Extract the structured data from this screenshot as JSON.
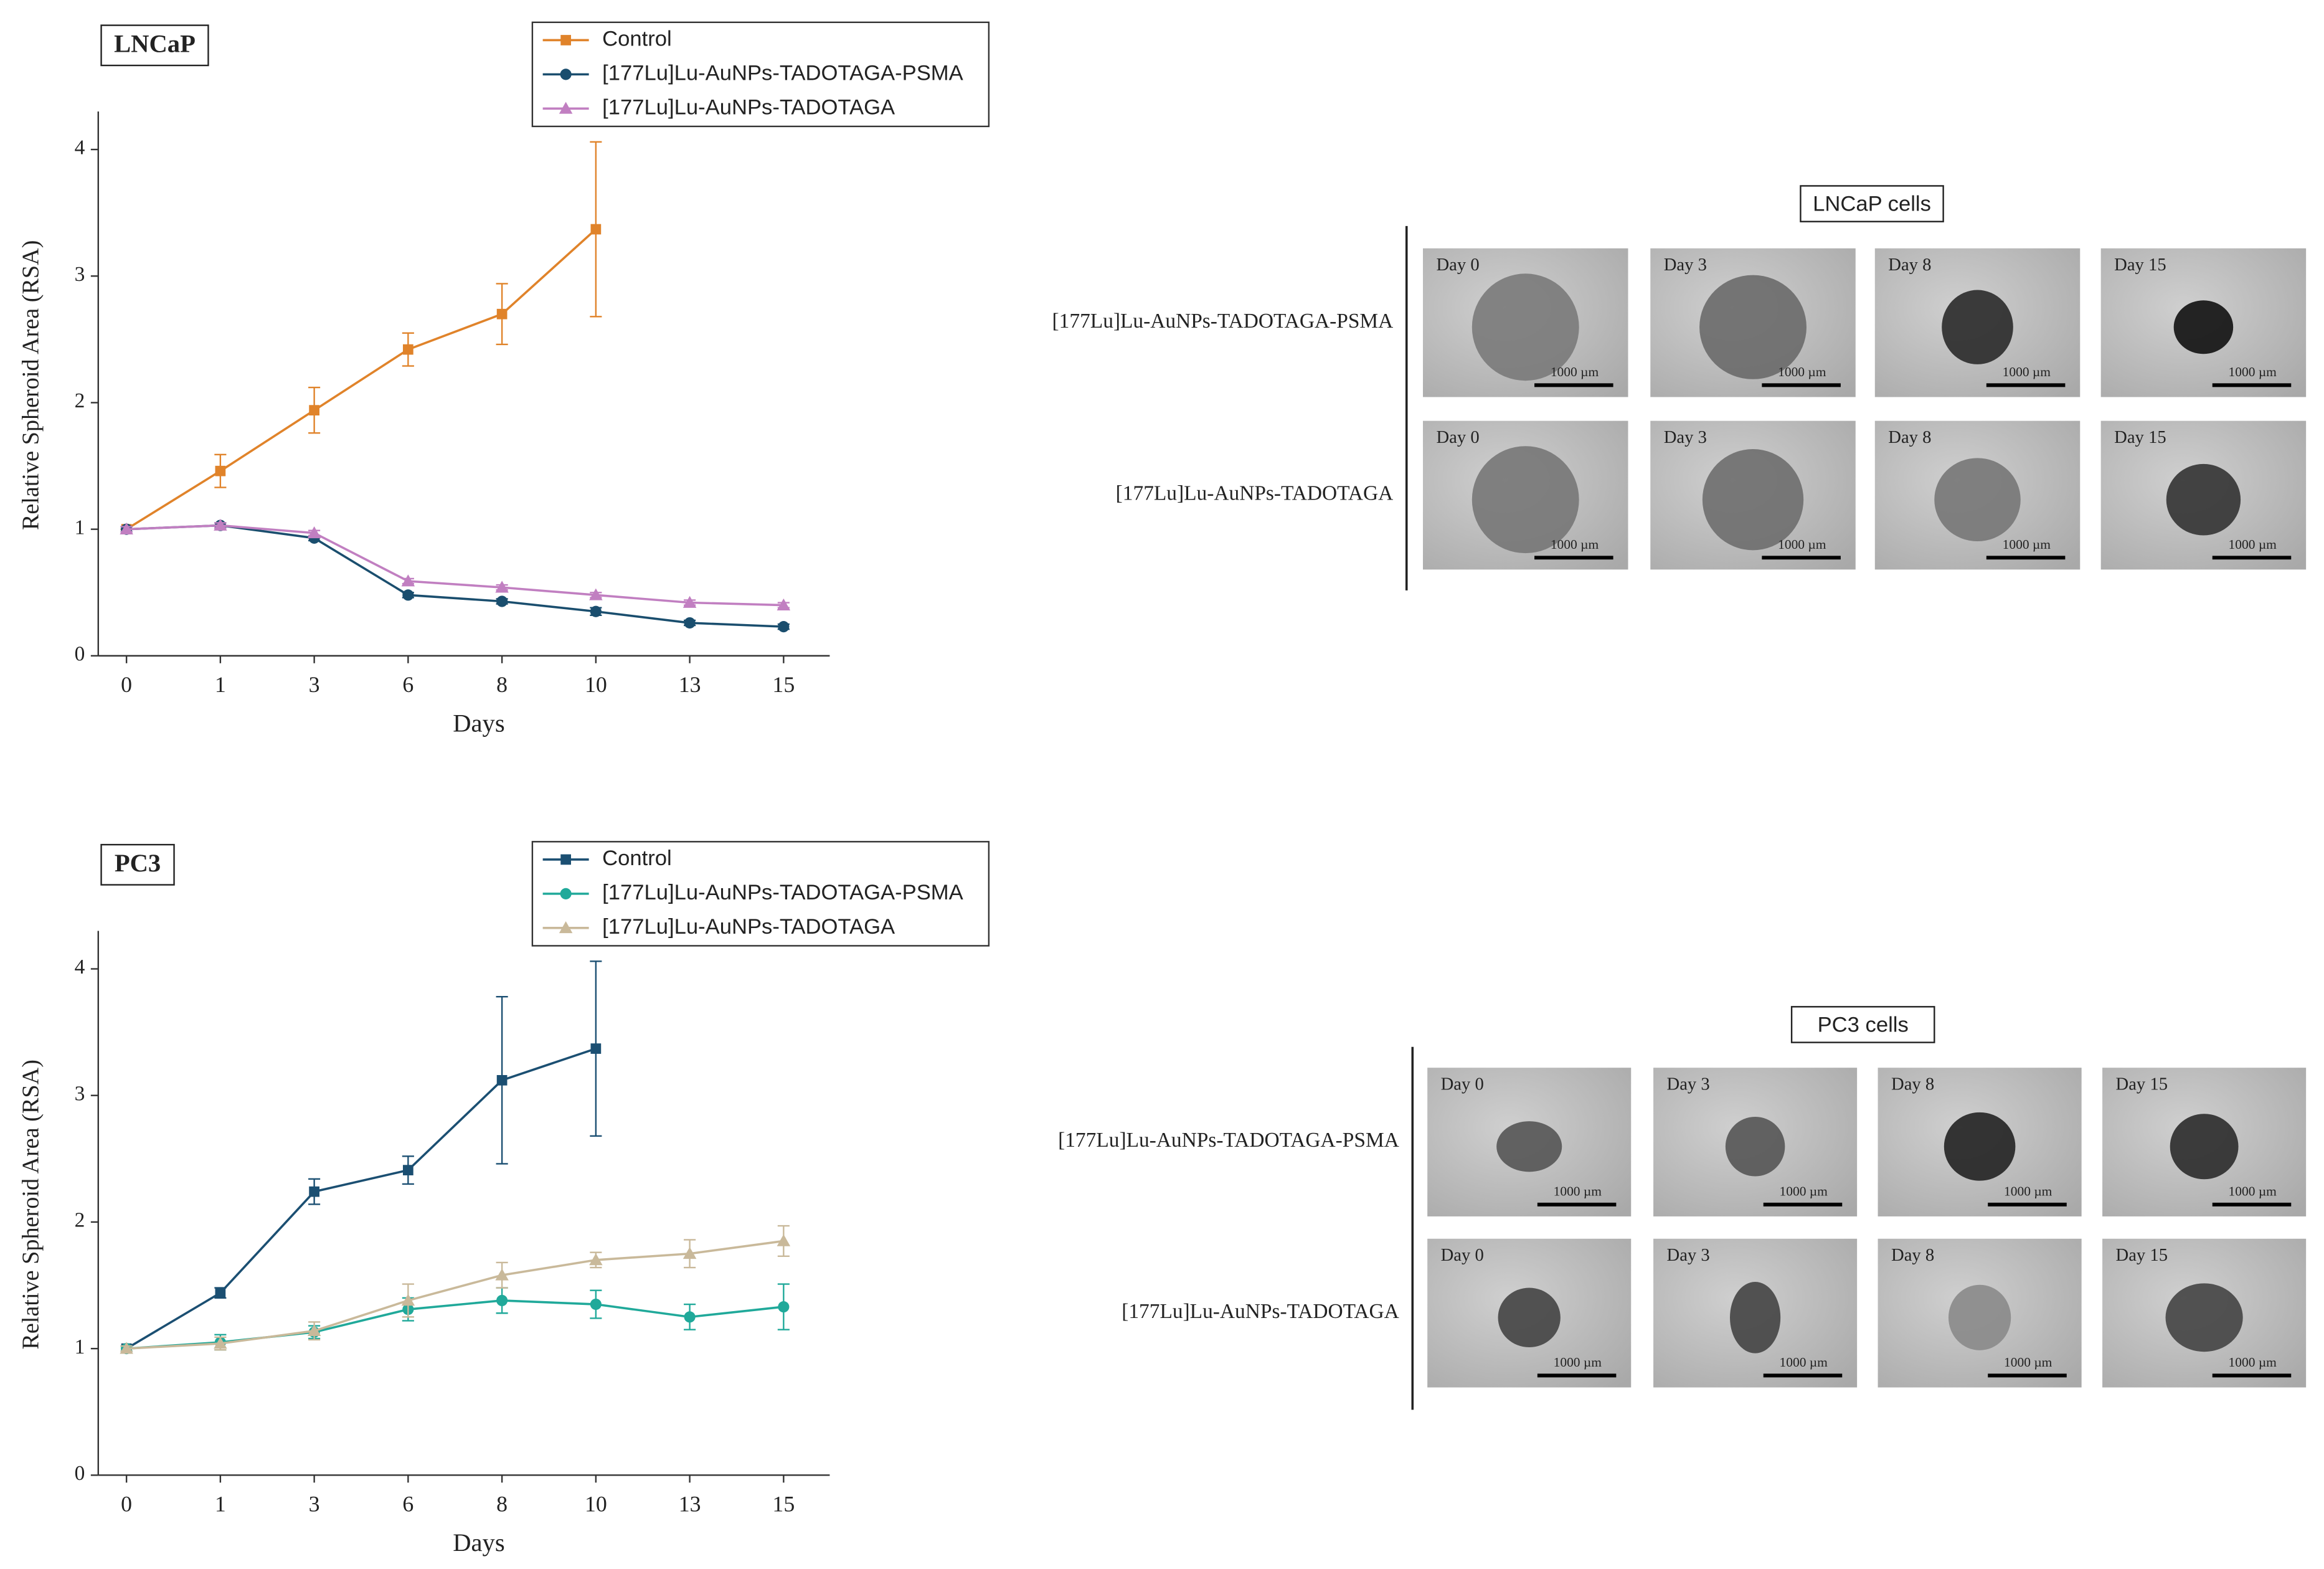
{
  "chart_data": [
    {
      "type": "line",
      "panel_label": "LNCaP",
      "x_label": "Days",
      "y_label": "Relative Spheroid Area (RSA)",
      "categories": [
        "0",
        "1",
        "3",
        "6",
        "8",
        "10",
        "13",
        "15"
      ],
      "ylim": [
        0,
        4.3
      ],
      "yticks": [
        0,
        1,
        2,
        3,
        4
      ],
      "grid": false,
      "series": [
        {
          "name": "Control",
          "color": "#e0832a",
          "marker": "square",
          "values": [
            1.0,
            1.46,
            1.94,
            2.42,
            2.7,
            3.37,
            null,
            null
          ],
          "errors": [
            0,
            0.13,
            0.18,
            0.13,
            0.24,
            0.69,
            null,
            null
          ]
        },
        {
          "name": "[177Lu]Lu-AuNPs-TADOTAGA-PSMA",
          "color": "#1a4e6e",
          "marker": "circle",
          "values": [
            1.0,
            1.03,
            0.93,
            0.48,
            0.43,
            0.35,
            0.26,
            0.23
          ],
          "errors": [
            0.02,
            0.02,
            0.02,
            0.02,
            0.02,
            0.03,
            0.02,
            0.02
          ]
        },
        {
          "name": "[177Lu]Lu-AuNPs-TADOTAGA",
          "color": "#c17fc1",
          "marker": "triangle",
          "values": [
            1.0,
            1.03,
            0.97,
            0.59,
            0.54,
            0.48,
            0.42,
            0.4
          ],
          "errors": [
            0.02,
            0.02,
            0.02,
            0.02,
            0.02,
            0.02,
            0.02,
            0.02
          ]
        }
      ]
    },
    {
      "type": "line",
      "panel_label": "PC3",
      "x_label": "Days",
      "y_label": "Relative Spheroid Area (RSA)",
      "categories": [
        "0",
        "1",
        "3",
        "6",
        "8",
        "10",
        "13",
        "15"
      ],
      "ylim": [
        0,
        4.3
      ],
      "yticks": [
        0,
        1,
        2,
        3,
        4
      ],
      "grid": false,
      "series": [
        {
          "name": "Control",
          "color": "#1b4f72",
          "marker": "square",
          "values": [
            1.0,
            1.44,
            2.24,
            2.41,
            3.12,
            3.37,
            null,
            null
          ],
          "errors": [
            0.02,
            0.04,
            0.1,
            0.11,
            0.66,
            0.69,
            null,
            null
          ]
        },
        {
          "name": "[177Lu]Lu-AuNPs-TADOTAGA-PSMA",
          "color": "#20a99a",
          "marker": "circle",
          "values": [
            1.0,
            1.05,
            1.13,
            1.31,
            1.38,
            1.35,
            1.25,
            1.33
          ],
          "errors": [
            0.02,
            0.06,
            0.05,
            0.09,
            0.1,
            0.11,
            0.1,
            0.18
          ]
        },
        {
          "name": "[177Lu]Lu-AuNPs-TADOTAGA",
          "color": "#c9b99a",
          "marker": "triangle",
          "values": [
            1.0,
            1.04,
            1.14,
            1.38,
            1.58,
            1.7,
            1.75,
            1.85
          ],
          "errors": [
            0.02,
            0.05,
            0.07,
            0.13,
            0.1,
            0.06,
            0.11,
            0.12
          ]
        }
      ]
    }
  ],
  "image_panels": [
    {
      "title": "LNCaP cells",
      "days": [
        "Day 0",
        "Day 3",
        "Day 8",
        "Day 15"
      ],
      "scale_bar": "1000 µm",
      "rows": [
        "[177Lu]Lu-AuNPs-TADOTAGA-PSMA",
        "[177Lu]Lu-AuNPs-TADOTAGA"
      ]
    },
    {
      "title": "PC3 cells",
      "days": [
        "Day 0",
        "Day 3",
        "Day 8",
        "Day 15"
      ],
      "scale_bar": "1000 µm",
      "rows": [
        "[177Lu]Lu-AuNPs-TADOTAGA-PSMA",
        "[177Lu]Lu-AuNPs-TADOTAGA"
      ]
    }
  ]
}
